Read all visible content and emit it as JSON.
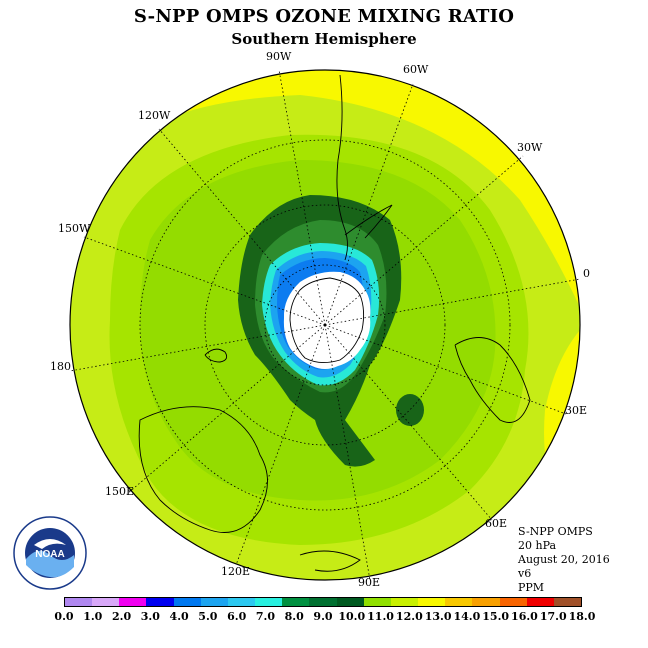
{
  "title": "S-NPP OMPS OZONE MIXING RATIO",
  "subtitle": "Southern Hemisphere",
  "longitude_labels": [
    "90W",
    "60W",
    "30W",
    "0",
    "30E",
    "60E",
    "90E",
    "120E",
    "150E",
    "180",
    "150W",
    "120W"
  ],
  "info": {
    "instrument": "S-NPP OMPS",
    "level": "20 hPa",
    "date": "August 20, 2016",
    "version": "v6",
    "units": "PPM"
  },
  "logo_text": "NOAA",
  "colorbar": {
    "ticks": [
      "0.0",
      "1.0",
      "2.0",
      "3.0",
      "4.0",
      "5.0",
      "6.0",
      "7.0",
      "8.0",
      "9.0",
      "10.0",
      "11.0",
      "12.0",
      "13.0",
      "14.0",
      "15.0",
      "16.0",
      "17.0",
      "18.0"
    ],
    "colors": [
      "#b088f0",
      "#d8a8f8",
      "#f000f0",
      "#0000f0",
      "#0078f0",
      "#1ca4f0",
      "#2cc8f0",
      "#28f0e0",
      "#009040",
      "#007030",
      "#005a20",
      "#90e000",
      "#c8f000",
      "#f8f800",
      "#f8c800",
      "#f8a000",
      "#f86400",
      "#f00000",
      "#a05028"
    ]
  },
  "map_colors": {
    "ring_10_11": "#c6ec16",
    "ring_11_12": "#a6e400",
    "ring_12_13": "#94dc00",
    "ring_9_10": "#2e8c2e",
    "ring_8_9": "#186418",
    "ring_7_8": "#28e8d8",
    "ring_6_7": "#1cb8f0",
    "ring_5_6": "#0c7cf0",
    "high_13": "#f8f800",
    "low_0": "#b088f0",
    "pole": "#ffffff"
  }
}
